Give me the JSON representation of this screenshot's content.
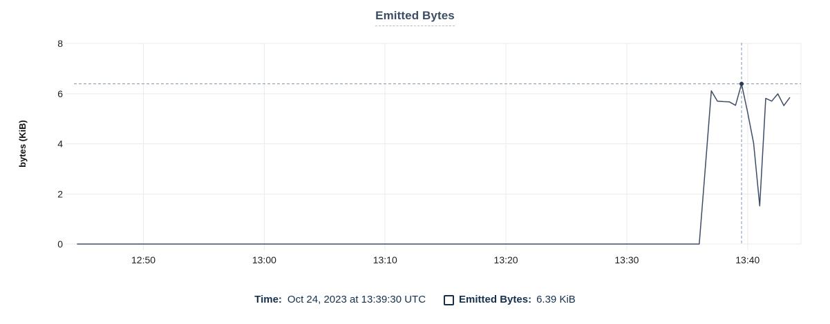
{
  "title": "Emitted Bytes",
  "footer": {
    "time_label": "Time:",
    "time_value": "Oct 24, 2023 at 13:39:30 UTC",
    "series_label": "Emitted Bytes:",
    "series_value": "6.39 KiB"
  },
  "colors": {
    "line": "#3e4c64",
    "marker": "#2b3a53",
    "crosshair": "#8095aa",
    "grid": "#ebebeb",
    "tick_text": "#1c1c1c",
    "axis_label_text": "#111111",
    "title_text": "#3c4d64",
    "footer_text": "#14304d",
    "title_underline": "#b4bcc8"
  },
  "chart_data": {
    "type": "line",
    "title": "Emitted Bytes",
    "xlabel": "",
    "ylabel": "bytes (KiB)",
    "x_ticks": [
      "12:50",
      "13:00",
      "13:10",
      "13:20",
      "13:30",
      "13:40"
    ],
    "y_ticks": [
      "0",
      "2",
      "4",
      "6",
      "8"
    ],
    "ylim": [
      0,
      8
    ],
    "x_range": [
      "12:44:15",
      "13:44:25"
    ],
    "grid": true,
    "legend_position": "bottom",
    "series": [
      {
        "name": "Emitted Bytes",
        "unit": "KiB",
        "points": [
          {
            "t": "12:44:30",
            "v": 0
          },
          {
            "t": "13:36:00",
            "v": 0
          },
          {
            "t": "13:36:30",
            "v": 3.05
          },
          {
            "t": "13:37:00",
            "v": 6.11
          },
          {
            "t": "13:37:30",
            "v": 5.7
          },
          {
            "t": "13:38:00",
            "v": 5.68
          },
          {
            "t": "13:38:30",
            "v": 5.67
          },
          {
            "t": "13:39:00",
            "v": 5.53
          },
          {
            "t": "13:39:30",
            "v": 6.39
          },
          {
            "t": "13:40:00",
            "v": 5.25
          },
          {
            "t": "13:40:30",
            "v": 4.02
          },
          {
            "t": "13:41:00",
            "v": 1.52
          },
          {
            "t": "13:41:30",
            "v": 5.81
          },
          {
            "t": "13:42:00",
            "v": 5.7
          },
          {
            "t": "13:42:30",
            "v": 5.99
          },
          {
            "t": "13:43:00",
            "v": 5.52
          },
          {
            "t": "13:43:30",
            "v": 5.85
          }
        ]
      }
    ],
    "crosshair": {
      "time": "13:39:30",
      "value": 6.39
    }
  }
}
